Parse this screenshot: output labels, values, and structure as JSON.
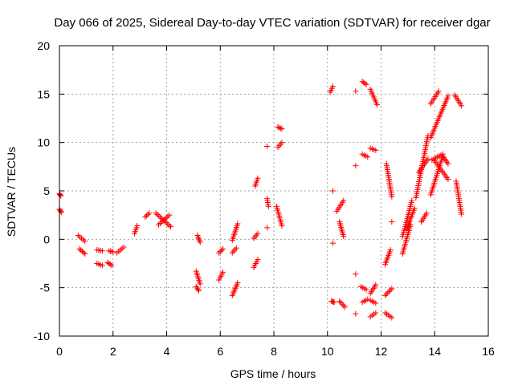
{
  "chart_data": {
    "type": "scatter",
    "title": "Day 066 of 2025, Sidereal Day-to-day VTEC variation (SDTVAR) for receiver dgar",
    "xlabel": "GPS time / hours",
    "ylabel": "SDTVAR / TECUs",
    "xlim": [
      0,
      16
    ],
    "ylim": [
      -10,
      20
    ],
    "xticks": [
      0,
      2,
      4,
      6,
      8,
      10,
      12,
      14,
      16
    ],
    "yticks": [
      -10,
      -5,
      0,
      5,
      10,
      15,
      20
    ],
    "xtick_labels": [
      "0",
      "2",
      "4",
      "6",
      "8",
      "10",
      "12",
      "14",
      "16"
    ],
    "ytick_labels": [
      "-10",
      "-5",
      "0",
      "5",
      "10",
      "15",
      "20"
    ],
    "grid": true,
    "marker": "+",
    "color": "#ff0000",
    "series": [
      {
        "name": "SDTVAR",
        "segments": [
          {
            "x": [
              0.0,
              0.05
            ],
            "y": [
              4.7,
              4.5
            ]
          },
          {
            "x": [
              0.0,
              0.07
            ],
            "y": [
              3.1,
              2.8
            ]
          },
          {
            "x": [
              0.7,
              0.95
            ],
            "y": [
              0.4,
              -0.2
            ]
          },
          {
            "x": [
              0.75,
              0.95
            ],
            "y": [
              -1.0,
              -1.5
            ]
          },
          {
            "x": [
              1.4,
              1.6
            ],
            "y": [
              -1.1,
              -1.2
            ]
          },
          {
            "x": [
              1.4,
              1.6
            ],
            "y": [
              -2.5,
              -2.7
            ]
          },
          {
            "x": [
              1.85,
              2.0
            ],
            "y": [
              -1.2,
              -1.3
            ]
          },
          {
            "x": [
              1.8,
              1.95
            ],
            "y": [
              -2.4,
              -2.7
            ]
          },
          {
            "x": [
              2.15,
              2.4
            ],
            "y": [
              -1.4,
              -0.8
            ]
          },
          {
            "x": [
              2.8,
              2.9
            ],
            "y": [
              0.6,
              1.4
            ]
          },
          {
            "x": [
              3.2,
              3.35
            ],
            "y": [
              2.3,
              2.7
            ]
          },
          {
            "x": [
              3.6,
              4.15
            ],
            "y": [
              2.7,
              1.3
            ]
          },
          {
            "x": [
              3.7,
              4.1
            ],
            "y": [
              1.5,
              2.5
            ]
          },
          {
            "x": [
              5.15,
              5.25
            ],
            "y": [
              0.4,
              -0.3
            ]
          },
          {
            "x": [
              5.1,
              5.25
            ],
            "y": [
              -3.3,
              -4.6
            ]
          },
          {
            "x": [
              5.1,
              5.2
            ],
            "y": [
              -4.9,
              -5.3
            ]
          },
          {
            "x": [
              5.95,
              6.1
            ],
            "y": [
              -1.4,
              -1.0
            ]
          },
          {
            "x": [
              5.95,
              6.1
            ],
            "y": [
              -4.2,
              -3.4
            ]
          },
          {
            "x": [
              6.45,
              6.65
            ],
            "y": [
              -0.1,
              1.6
            ]
          },
          {
            "x": [
              6.45,
              6.6
            ],
            "y": [
              -1.4,
              -0.9
            ]
          },
          {
            "x": [
              6.45,
              6.65
            ],
            "y": [
              -5.8,
              -4.5
            ]
          },
          {
            "x": [
              7.25,
              7.4
            ],
            "y": [
              0.1,
              0.6
            ]
          },
          {
            "x": [
              7.25,
              7.4
            ],
            "y": [
              -2.9,
              -2.1
            ]
          },
          {
            "x": [
              7.3,
              7.4
            ],
            "y": [
              5.5,
              6.3
            ]
          },
          {
            "x": [
              7.75
            ],
            "y": [
              9.6
            ]
          },
          {
            "x": [
              7.75,
              7.8
            ],
            "y": [
              4.2,
              3.4
            ]
          },
          {
            "x": [
              7.75
            ],
            "y": [
              1.2
            ]
          },
          {
            "x": [
              8.15,
              8.3
            ],
            "y": [
              11.6,
              11.4
            ]
          },
          {
            "x": [
              8.15,
              8.3
            ],
            "y": [
              9.5,
              10.0
            ]
          },
          {
            "x": [
              8.1,
              8.3
            ],
            "y": [
              3.4,
              1.4
            ]
          },
          {
            "x": [
              10.1,
              10.2
            ],
            "y": [
              15.2,
              15.8
            ]
          },
          {
            "x": [
              10.2
            ],
            "y": [
              5.0
            ]
          },
          {
            "x": [
              10.2
            ],
            "y": [
              -0.4
            ]
          },
          {
            "x": [
              10.15,
              10.25
            ],
            "y": [
              -6.4,
              -6.5
            ]
          },
          {
            "x": [
              10.35,
              10.6
            ],
            "y": [
              2.9,
              4.0
            ]
          },
          {
            "x": [
              10.45,
              10.6
            ],
            "y": [
              1.8,
              0.3
            ]
          },
          {
            "x": [
              10.45,
              10.65
            ],
            "y": [
              -6.4,
              -7.0
            ]
          },
          {
            "x": [
              11.05
            ],
            "y": [
              15.3
            ]
          },
          {
            "x": [
              11.05
            ],
            "y": [
              7.6
            ]
          },
          {
            "x": [
              11.05
            ],
            "y": [
              -3.6
            ]
          },
          {
            "x": [
              11.05
            ],
            "y": [
              -7.7
            ]
          },
          {
            "x": [
              11.3,
              11.45
            ],
            "y": [
              16.3,
              16.0
            ]
          },
          {
            "x": [
              11.3,
              11.5
            ],
            "y": [
              8.8,
              8.5
            ]
          },
          {
            "x": [
              11.25,
              11.45
            ],
            "y": [
              -4.9,
              -5.2
            ]
          },
          {
            "x": [
              11.3,
              11.5
            ],
            "y": [
              -6.5,
              -6.2
            ]
          },
          {
            "x": [
              11.6,
              11.85
            ],
            "y": [
              15.5,
              13.9
            ]
          },
          {
            "x": [
              11.6,
              11.8
            ],
            "y": [
              9.4,
              9.2
            ]
          },
          {
            "x": [
              11.6,
              11.8
            ],
            "y": [
              -5.6,
              -4.7
            ]
          },
          {
            "x": [
              11.6,
              11.8
            ],
            "y": [
              -6.3,
              -6.6
            ]
          },
          {
            "x": [
              11.6,
              11.8
            ],
            "y": [
              -8.0,
              -7.6
            ]
          },
          {
            "x": [
              12.2,
              12.4
            ],
            "y": [
              7.8,
              4.4
            ]
          },
          {
            "x": [
              12.15,
              12.35
            ],
            "y": [
              -2.6,
              -1.1
            ]
          },
          {
            "x": [
              12.15,
              12.4
            ],
            "y": [
              -5.8,
              -5.1
            ]
          },
          {
            "x": [
              12.15,
              12.4
            ],
            "y": [
              -7.6,
              -8.1
            ]
          },
          {
            "x": [
              12.4
            ],
            "y": [
              1.8
            ]
          },
          {
            "x": [
              12.8,
              13.1
            ],
            "y": [
              -1.5,
              1.5
            ]
          },
          {
            "x": [
              12.8,
              13.15
            ],
            "y": [
              0.3,
              4.0
            ]
          },
          {
            "x": [
              12.95,
              13.25
            ],
            "y": [
              1.0,
              3.2
            ]
          },
          {
            "x": [
              13.3,
              13.75
            ],
            "y": [
              4.3,
              10.7
            ]
          },
          {
            "x": [
              13.4,
              13.75
            ],
            "y": [
              6.9,
              8.3
            ]
          },
          {
            "x": [
              13.5,
              13.7
            ],
            "y": [
              1.8,
              2.7
            ]
          },
          {
            "x": [
              13.85,
              14.15
            ],
            "y": [
              14.0,
              15.3
            ]
          },
          {
            "x": [
              13.85,
              14.5
            ],
            "y": [
              10.5,
              14.8
            ]
          },
          {
            "x": [
              13.9,
              14.3
            ],
            "y": [
              8.2,
              8.8
            ]
          },
          {
            "x": [
              13.85,
              14.3
            ],
            "y": [
              4.6,
              8.6
            ]
          },
          {
            "x": [
              14.0,
              14.5
            ],
            "y": [
              8.1,
              6.2
            ]
          },
          {
            "x": [
              14.3,
              14.5
            ],
            "y": [
              8.6,
              7.8
            ]
          },
          {
            "x": [
              14.75,
              15.0
            ],
            "y": [
              14.9,
              13.8
            ]
          },
          {
            "x": [
              14.8,
              15.0
            ],
            "y": [
              6.0,
              2.6
            ]
          }
        ]
      }
    ]
  }
}
